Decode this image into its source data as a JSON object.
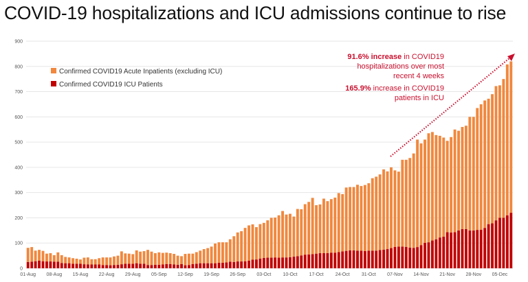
{
  "title": "COVID-19 hospitalizations and ICU admissions continue to rise",
  "annotations": [
    {
      "bold": "91.6% increase",
      "rest": " in COVID19"
    },
    {
      "bold": "",
      "rest": "hospitalizations over most"
    },
    {
      "bold": "",
      "rest": "recent 4 weeks"
    },
    {
      "bold": "165.9%",
      "rest": " increase in COVID19"
    },
    {
      "bold": "",
      "rest": "patients in ICU"
    }
  ],
  "chart_data": {
    "type": "bar",
    "stacked": true,
    "title": "",
    "xlabel": "",
    "ylabel": "",
    "ylim": [
      0,
      900
    ],
    "yticks": [
      0,
      100,
      200,
      300,
      400,
      500,
      600,
      700,
      800,
      900
    ],
    "xticks": [
      "01-Aug",
      "08-Aug",
      "15-Aug",
      "22-Aug",
      "29-Aug",
      "05-Sep",
      "12-Sep",
      "19-Sep",
      "26-Sep",
      "03-Oct",
      "10-Oct",
      "17-Oct",
      "24-Oct",
      "31-Oct",
      "07-Nov",
      "14-Nov",
      "21-Nov",
      "28-Nov",
      "05-Dec"
    ],
    "grid": true,
    "legend": "top-left",
    "colors": {
      "acute": "#f0883e",
      "icu": "#c00000",
      "annotation": "#c8102e"
    },
    "categories": [
      "01-Aug",
      "02-Aug",
      "03-Aug",
      "04-Aug",
      "05-Aug",
      "06-Aug",
      "07-Aug",
      "08-Aug",
      "09-Aug",
      "10-Aug",
      "11-Aug",
      "12-Aug",
      "13-Aug",
      "14-Aug",
      "15-Aug",
      "16-Aug",
      "17-Aug",
      "18-Aug",
      "19-Aug",
      "20-Aug",
      "21-Aug",
      "22-Aug",
      "23-Aug",
      "24-Aug",
      "25-Aug",
      "26-Aug",
      "27-Aug",
      "28-Aug",
      "29-Aug",
      "30-Aug",
      "31-Aug",
      "01-Sep",
      "02-Sep",
      "03-Sep",
      "04-Sep",
      "05-Sep",
      "06-Sep",
      "07-Sep",
      "08-Sep",
      "09-Sep",
      "10-Sep",
      "11-Sep",
      "12-Sep",
      "13-Sep",
      "14-Sep",
      "15-Sep",
      "16-Sep",
      "17-Sep",
      "18-Sep",
      "19-Sep",
      "20-Sep",
      "21-Sep",
      "22-Sep",
      "23-Sep",
      "24-Sep",
      "25-Sep",
      "26-Sep",
      "27-Sep",
      "28-Sep",
      "29-Sep",
      "30-Sep",
      "01-Oct",
      "02-Oct",
      "03-Oct",
      "04-Oct",
      "05-Oct",
      "06-Oct",
      "07-Oct",
      "08-Oct",
      "09-Oct",
      "10-Oct",
      "11-Oct",
      "12-Oct",
      "13-Oct",
      "14-Oct",
      "15-Oct",
      "16-Oct",
      "17-Oct",
      "18-Oct",
      "19-Oct",
      "20-Oct",
      "21-Oct",
      "22-Oct",
      "23-Oct",
      "24-Oct",
      "25-Oct",
      "26-Oct",
      "27-Oct",
      "28-Oct",
      "29-Oct",
      "30-Oct",
      "31-Oct",
      "01-Nov",
      "02-Nov",
      "03-Nov",
      "04-Nov",
      "05-Nov",
      "06-Nov",
      "07-Nov",
      "08-Nov",
      "09-Nov",
      "10-Nov",
      "11-Nov",
      "12-Nov",
      "13-Nov",
      "14-Nov",
      "15-Nov",
      "16-Nov",
      "17-Nov",
      "18-Nov",
      "19-Nov",
      "20-Nov",
      "21-Nov",
      "22-Nov",
      "23-Nov",
      "24-Nov",
      "25-Nov",
      "26-Nov",
      "27-Nov",
      "28-Nov",
      "29-Nov",
      "30-Nov",
      "01-Dec",
      "02-Dec",
      "03-Dec",
      "04-Dec",
      "05-Dec",
      "06-Dec",
      "07-Dec",
      "08-Dec"
    ],
    "series": [
      {
        "name": "Confirmed COVID19 ICU Patients",
        "key": "icu",
        "values": [
          25,
          26,
          28,
          30,
          28,
          27,
          27,
          26,
          26,
          21,
          20,
          20,
          18,
          18,
          18,
          16,
          15,
          15,
          15,
          15,
          13,
          13,
          12,
          13,
          14,
          16,
          18,
          18,
          18,
          20,
          18,
          18,
          13,
          13,
          14,
          14,
          15,
          17,
          17,
          15,
          14,
          17,
          12,
          13,
          17,
          18,
          20,
          20,
          20,
          20,
          20,
          22,
          22,
          23,
          26,
          25,
          27,
          27,
          28,
          30,
          34,
          35,
          38,
          41,
          42,
          42,
          43,
          42,
          43,
          43,
          44,
          46,
          48,
          51,
          54,
          55,
          56,
          58,
          60,
          60,
          60,
          62,
          62,
          64,
          67,
          69,
          71,
          71,
          70,
          70,
          68,
          70,
          70,
          70,
          72,
          74,
          76,
          80,
          85,
          86,
          86,
          85,
          82,
          81,
          84,
          92,
          101,
          103,
          110,
          115,
          122,
          125,
          143,
          142,
          143,
          150,
          155,
          155,
          150,
          150,
          152,
          153,
          160,
          175,
          178,
          190,
          200,
          200,
          210,
          220
        ]
      },
      {
        "name": "Confirmed COVID19 Acute Inpatients (excluding ICU)",
        "key": "acute",
        "values": [
          56,
          58,
          42,
          43,
          41,
          31,
          33,
          26,
          37,
          31,
          25,
          23,
          22,
          20,
          17,
          26,
          28,
          21,
          21,
          25,
          30,
          30,
          31,
          34,
          36,
          51,
          41,
          40,
          38,
          51,
          48,
          50,
          60,
          53,
          46,
          49,
          46,
          45,
          43,
          42,
          36,
          31,
          45,
          45,
          41,
          46,
          50,
          56,
          60,
          66,
          78,
          81,
          81,
          80,
          89,
          102,
          115,
          120,
          132,
          140,
          140,
          128,
          137,
          139,
          148,
          158,
          158,
          168,
          184,
          170,
          172,
          159,
          187,
          183,
          200,
          208,
          223,
          192,
          193,
          216,
          206,
          212,
          218,
          234,
          227,
          251,
          251,
          251,
          261,
          256,
          262,
          267,
          287,
          293,
          300,
          318,
          308,
          320,
          303,
          297,
          344,
          345,
          355,
          374,
          426,
          403,
          409,
          432,
          430,
          413,
          403,
          393,
          362,
          378,
          407,
          395,
          405,
          410,
          450,
          450,
          483,
          497,
          505,
          497,
          512,
          532,
          525,
          550,
          598,
          600
        ]
      }
    ]
  }
}
